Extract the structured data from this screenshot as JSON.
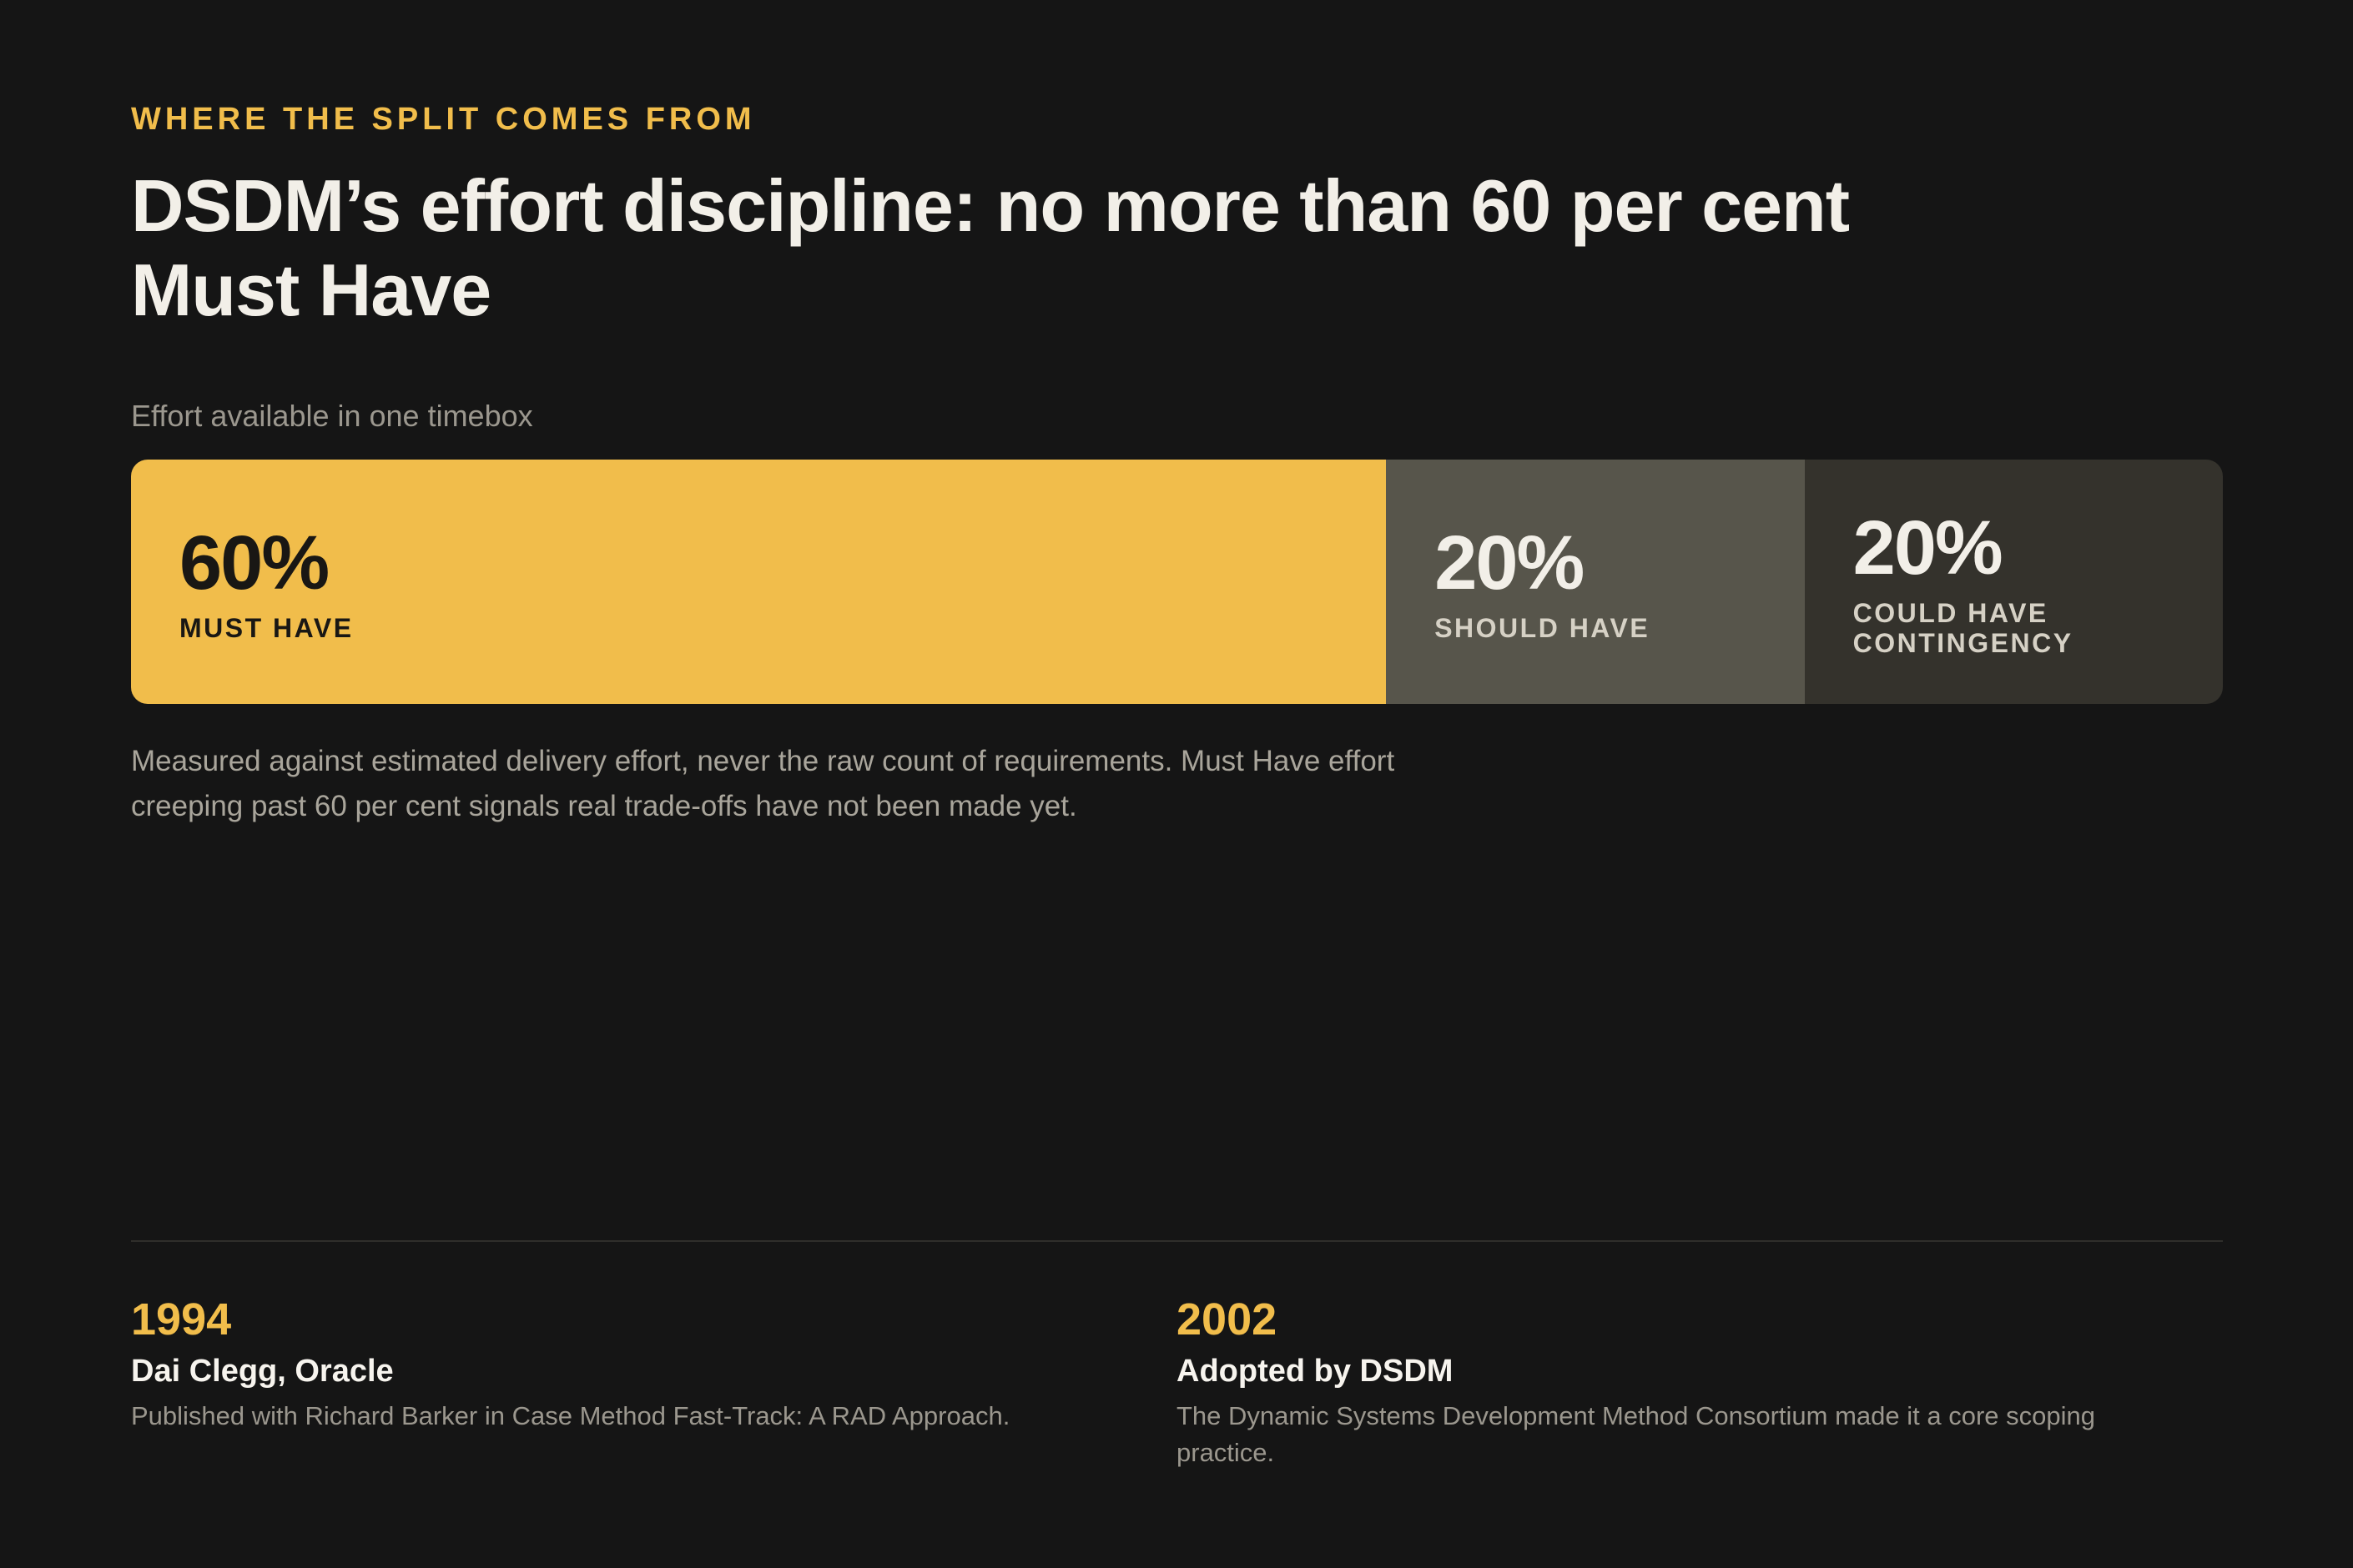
{
  "header": {
    "eyebrow": "WHERE THE SPLIT COMES FROM",
    "title": "DSDM’s effort discipline: no more than 60 per cent Must Have"
  },
  "chart_data": {
    "type": "bar",
    "orientation": "horizontal-stacked",
    "title": "DSDM’s effort discipline: no more than 60 per cent Must Have",
    "subtitle": "Effort available in one timebox",
    "categories": [
      "MUST HAVE",
      "SHOULD HAVE",
      "COULD HAVE\nCONTINGENCY"
    ],
    "values": [
      60,
      20,
      20
    ],
    "value_labels": [
      "60%",
      "20%",
      "20%"
    ],
    "total": 100,
    "colors": [
      "#f1bd4b",
      "#57554b",
      "#34322c"
    ]
  },
  "note": "Measured against estimated delivery effort, never the raw count of requirements. Must Have effort creeping past 60 per cent signals real trade-offs have not been made yet.",
  "facts": [
    {
      "year": "1994",
      "title": "Dai Clegg, Oracle",
      "description": "Published with Richard Barker in Case Method Fast-Track: A RAD Approach."
    },
    {
      "year": "2002",
      "title": "Adopted by DSDM",
      "description": "The Dynamic Systems Development Method Consortium made it a core scoping practice."
    }
  ],
  "colors": {
    "accent": "#f1bd4b",
    "background": "#151515"
  }
}
